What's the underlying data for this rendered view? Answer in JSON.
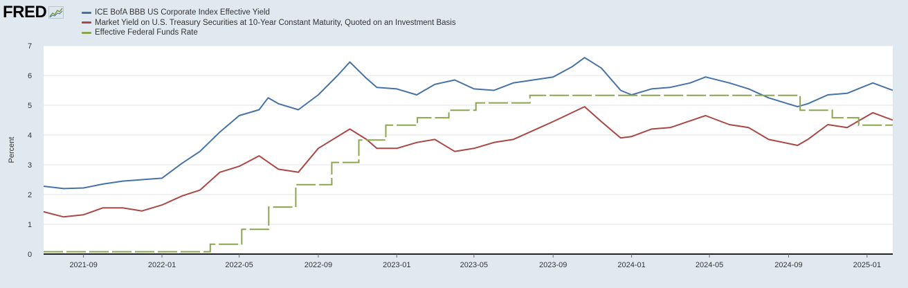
{
  "logo": {
    "text": "FRED",
    "icon": "fred-chart-icon"
  },
  "colors": {
    "series1": "#4572a7",
    "series2": "#aa4643",
    "series3": "#89a54e",
    "plot_bg": "#ffffff",
    "page_bg": "#e1e9f0"
  },
  "chart_data": {
    "type": "line",
    "ylabel": "Percent",
    "xlabel": "",
    "ylim": [
      0,
      7
    ],
    "yticks": [
      0,
      1,
      2,
      3,
      4,
      5,
      6,
      7
    ],
    "xlim": [
      "2021-07-01",
      "2025-02-10"
    ],
    "xticks": [
      "2021-09",
      "2022-01",
      "2022-05",
      "2022-09",
      "2023-01",
      "2023-05",
      "2023-09",
      "2024-01",
      "2024-05",
      "2024-09",
      "2025-01"
    ],
    "grid": true,
    "legend_position": "top-left",
    "series": [
      {
        "name": "ICE BofA BBB US Corporate Index Effective Yield",
        "color": "#4572a7",
        "points": [
          [
            "2021-07-01",
            2.28
          ],
          [
            "2021-08-01",
            2.2
          ],
          [
            "2021-09-01",
            2.22
          ],
          [
            "2021-10-01",
            2.35
          ],
          [
            "2021-11-01",
            2.45
          ],
          [
            "2021-12-01",
            2.5
          ],
          [
            "2022-01-01",
            2.55
          ],
          [
            "2022-02-01",
            3.05
          ],
          [
            "2022-03-01",
            3.45
          ],
          [
            "2022-04-01",
            4.1
          ],
          [
            "2022-05-01",
            4.65
          ],
          [
            "2022-06-01",
            4.85
          ],
          [
            "2022-06-15",
            5.25
          ],
          [
            "2022-07-01",
            5.05
          ],
          [
            "2022-08-01",
            4.85
          ],
          [
            "2022-09-01",
            5.35
          ],
          [
            "2022-10-01",
            6.0
          ],
          [
            "2022-10-20",
            6.45
          ],
          [
            "2022-11-15",
            5.9
          ],
          [
            "2022-12-01",
            5.6
          ],
          [
            "2023-01-01",
            5.55
          ],
          [
            "2023-02-01",
            5.35
          ],
          [
            "2023-03-01",
            5.7
          ],
          [
            "2023-04-01",
            5.85
          ],
          [
            "2023-05-01",
            5.55
          ],
          [
            "2023-06-01",
            5.5
          ],
          [
            "2023-07-01",
            5.75
          ],
          [
            "2023-08-01",
            5.85
          ],
          [
            "2023-09-01",
            5.95
          ],
          [
            "2023-10-01",
            6.3
          ],
          [
            "2023-10-20",
            6.6
          ],
          [
            "2023-11-15",
            6.25
          ],
          [
            "2023-12-15",
            5.5
          ],
          [
            "2024-01-01",
            5.35
          ],
          [
            "2024-02-01",
            5.55
          ],
          [
            "2024-03-01",
            5.6
          ],
          [
            "2024-04-01",
            5.75
          ],
          [
            "2024-04-25",
            5.95
          ],
          [
            "2024-06-01",
            5.75
          ],
          [
            "2024-07-01",
            5.55
          ],
          [
            "2024-08-01",
            5.25
          ],
          [
            "2024-09-15",
            4.95
          ],
          [
            "2024-10-01",
            5.05
          ],
          [
            "2024-11-01",
            5.35
          ],
          [
            "2024-12-01",
            5.4
          ],
          [
            "2025-01-10",
            5.75
          ],
          [
            "2025-02-10",
            5.5
          ]
        ]
      },
      {
        "name": "Market Yield on U.S. Treasury Securities at 10-Year Constant Maturity, Quoted on an Investment Basis",
        "color": "#aa4643",
        "points": [
          [
            "2021-07-01",
            1.42
          ],
          [
            "2021-08-01",
            1.25
          ],
          [
            "2021-09-01",
            1.32
          ],
          [
            "2021-10-01",
            1.55
          ],
          [
            "2021-11-01",
            1.55
          ],
          [
            "2021-12-01",
            1.45
          ],
          [
            "2022-01-01",
            1.65
          ],
          [
            "2022-02-01",
            1.95
          ],
          [
            "2022-03-01",
            2.15
          ],
          [
            "2022-04-01",
            2.75
          ],
          [
            "2022-05-01",
            2.95
          ],
          [
            "2022-06-01",
            3.3
          ],
          [
            "2022-07-01",
            2.85
          ],
          [
            "2022-08-01",
            2.75
          ],
          [
            "2022-09-01",
            3.55
          ],
          [
            "2022-10-20",
            4.2
          ],
          [
            "2022-11-15",
            3.85
          ],
          [
            "2022-12-01",
            3.55
          ],
          [
            "2023-01-01",
            3.55
          ],
          [
            "2023-02-01",
            3.75
          ],
          [
            "2023-03-01",
            3.85
          ],
          [
            "2023-04-01",
            3.45
          ],
          [
            "2023-05-01",
            3.55
          ],
          [
            "2023-06-01",
            3.75
          ],
          [
            "2023-07-01",
            3.85
          ],
          [
            "2023-08-01",
            4.15
          ],
          [
            "2023-09-01",
            4.45
          ],
          [
            "2023-10-20",
            4.95
          ],
          [
            "2023-11-15",
            4.45
          ],
          [
            "2023-12-15",
            3.9
          ],
          [
            "2024-01-01",
            3.95
          ],
          [
            "2024-02-01",
            4.2
          ],
          [
            "2024-03-01",
            4.25
          ],
          [
            "2024-04-25",
            4.65
          ],
          [
            "2024-06-01",
            4.35
          ],
          [
            "2024-07-01",
            4.25
          ],
          [
            "2024-08-01",
            3.85
          ],
          [
            "2024-09-15",
            3.65
          ],
          [
            "2024-10-01",
            3.85
          ],
          [
            "2024-11-01",
            4.35
          ],
          [
            "2024-12-01",
            4.25
          ],
          [
            "2025-01-10",
            4.75
          ],
          [
            "2025-02-10",
            4.5
          ]
        ]
      },
      {
        "name": "Effective Federal Funds Rate",
        "color": "#89a54e",
        "steps": [
          [
            "2021-07-01",
            0.08
          ],
          [
            "2022-03-17",
            0.33
          ],
          [
            "2022-05-05",
            0.83
          ],
          [
            "2022-06-16",
            1.58
          ],
          [
            "2022-07-28",
            2.33
          ],
          [
            "2022-09-22",
            3.08
          ],
          [
            "2022-11-03",
            3.83
          ],
          [
            "2022-12-15",
            4.33
          ],
          [
            "2023-02-02",
            4.58
          ],
          [
            "2023-03-23",
            4.83
          ],
          [
            "2023-05-04",
            5.08
          ],
          [
            "2023-07-27",
            5.33
          ],
          [
            "2024-09-19",
            4.83
          ],
          [
            "2024-11-08",
            4.58
          ],
          [
            "2024-12-19",
            4.33
          ],
          [
            "2025-02-10",
            4.33
          ]
        ]
      }
    ]
  }
}
